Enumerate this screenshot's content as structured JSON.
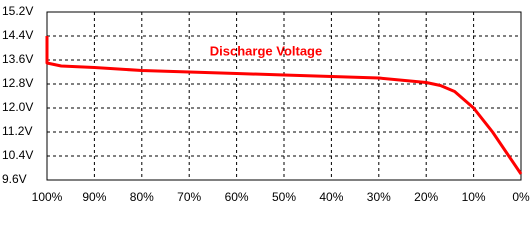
{
  "chart_data": {
    "type": "line",
    "title": "Discharge Voltage",
    "x": [
      100,
      100,
      97,
      90,
      80,
      70,
      60,
      50,
      40,
      30,
      20,
      17,
      14,
      10,
      6,
      0
    ],
    "series": [
      {
        "name": "Discharge Voltage",
        "color": "#ff0000",
        "values": [
          14.4,
          13.5,
          13.4,
          13.35,
          13.25,
          13.2,
          13.15,
          13.1,
          13.05,
          13.0,
          12.85,
          12.75,
          12.55,
          12.0,
          11.2,
          9.8
        ]
      }
    ],
    "xlim": [
      100,
      0
    ],
    "xticks": [
      {
        "value": 100,
        "label": "100%"
      },
      {
        "value": 90,
        "label": "90%"
      },
      {
        "value": 80,
        "label": "80%"
      },
      {
        "value": 70,
        "label": "70%"
      },
      {
        "value": 60,
        "label": "60%"
      },
      {
        "value": 50,
        "label": "50%"
      },
      {
        "value": 40,
        "label": "40%"
      },
      {
        "value": 30,
        "label": "30%"
      },
      {
        "value": 20,
        "label": "20%"
      },
      {
        "value": 10,
        "label": "10%"
      },
      {
        "value": 0,
        "label": "0%"
      }
    ],
    "ylim": [
      9.6,
      15.2
    ],
    "yticks": [
      {
        "value": 9.6,
        "label": "9.6V"
      },
      {
        "value": 10.4,
        "label": "10.4V"
      },
      {
        "value": 11.2,
        "label": "11.2V"
      },
      {
        "value": 12.0,
        "label": "12.0V"
      },
      {
        "value": 12.8,
        "label": "12.8V"
      },
      {
        "value": 13.6,
        "label": "13.6V"
      },
      {
        "value": 14.4,
        "label": "14.4V"
      },
      {
        "value": 15.2,
        "label": "15.2V"
      }
    ],
    "grid": true
  }
}
